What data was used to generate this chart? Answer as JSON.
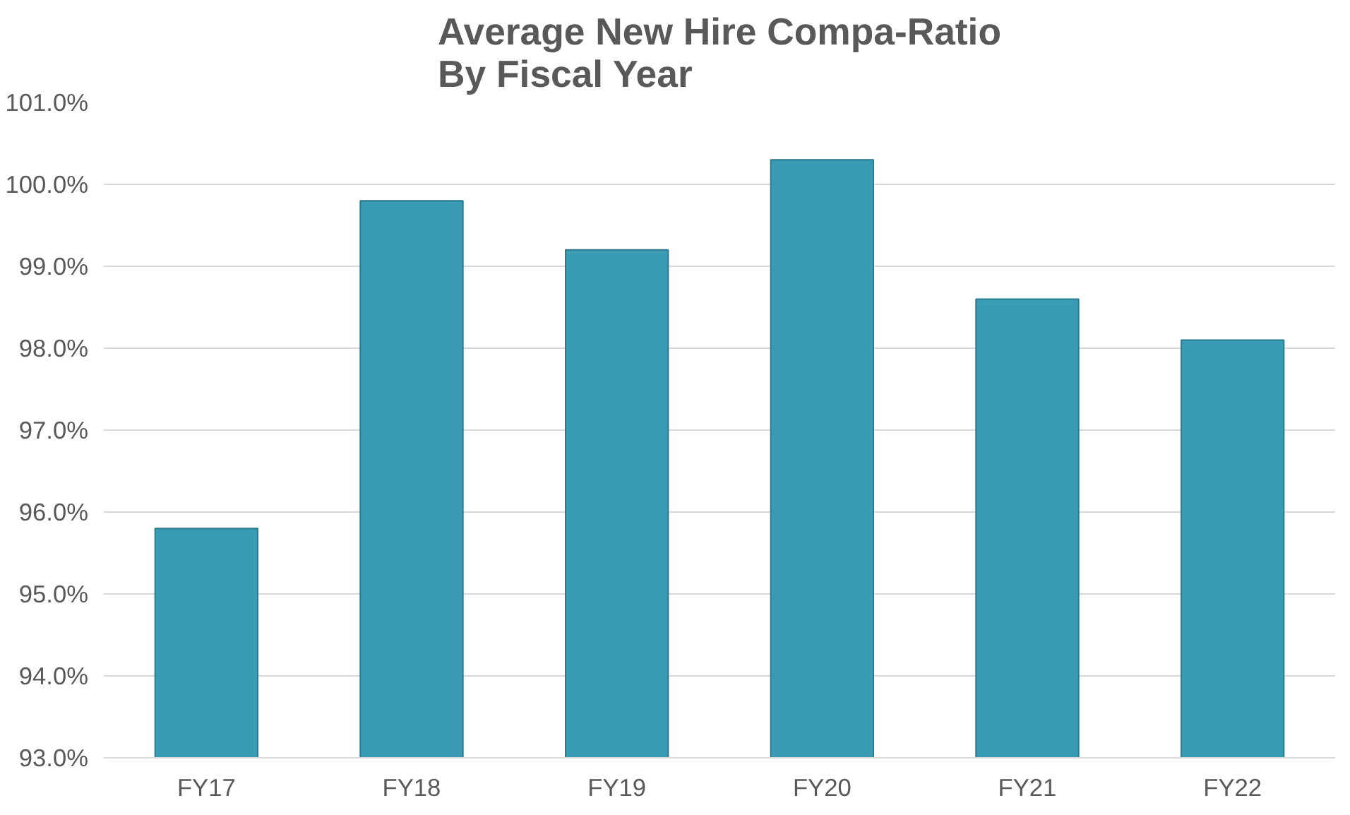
{
  "chart_data": {
    "type": "bar",
    "title": "Average New Hire Compa-Ratio\nBy Fiscal Year",
    "categories": [
      "FY17",
      "FY18",
      "FY19",
      "FY20",
      "FY21",
      "FY22"
    ],
    "values": [
      95.8,
      99.8,
      99.2,
      100.3,
      98.6,
      98.1
    ],
    "color": "#3a9bb5",
    "ylim": [
      93,
      101
    ],
    "yticks": [
      {
        "value": 93,
        "label": "93.0%"
      },
      {
        "value": 94,
        "label": "94.0%"
      },
      {
        "value": 95,
        "label": "95.0%"
      },
      {
        "value": 96,
        "label": "96.0%"
      },
      {
        "value": 97,
        "label": "97.0%"
      },
      {
        "value": 98,
        "label": "98.0%"
      },
      {
        "value": 99,
        "label": "99.0%"
      },
      {
        "value": 100,
        "label": "100.0%"
      },
      {
        "value": 101,
        "label": "101.0%"
      }
    ],
    "grid": "y"
  }
}
